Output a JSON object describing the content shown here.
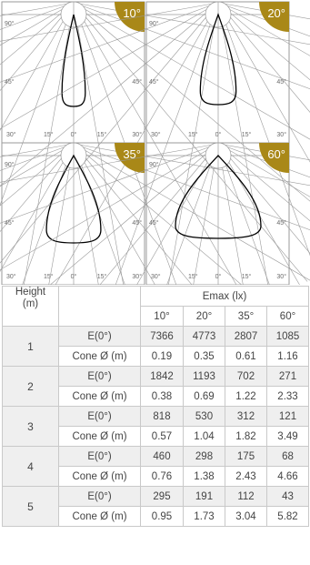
{
  "colors": {
    "badge": "#a98818",
    "curve": "#000000",
    "grid_lines": "#9a9a9a",
    "table_border": "#c9c9c9",
    "row_shade": "#efefef"
  },
  "polar_axis_labels": {
    "deg90": "90°",
    "deg45": "45°",
    "deg30": "30°",
    "deg15": "15°",
    "deg0": "0°"
  },
  "diagrams": [
    {
      "badge": "10°",
      "beam_angle_deg": 10
    },
    {
      "badge": "20°",
      "beam_angle_deg": 20
    },
    {
      "badge": "35°",
      "beam_angle_deg": 35
    },
    {
      "badge": "60°",
      "beam_angle_deg": 60
    }
  ],
  "table": {
    "height_header": "Height\n(m)",
    "emax_header": "Emax (lx)",
    "angle_headers": [
      "10°",
      "20°",
      "35°",
      "60°"
    ],
    "rows": [
      {
        "height": "1",
        "illuminance_label": "E(0°)",
        "illuminance": [
          "7366",
          "4773",
          "2807",
          "1085"
        ],
        "cone_label": "Cone Ø (m)",
        "cone": [
          "0.19",
          "0.35",
          "0.61",
          "1.16"
        ]
      },
      {
        "height": "2",
        "illuminance_label": "E(0°)",
        "illuminance": [
          "1842",
          "1193",
          "702",
          "271"
        ],
        "cone_label": "Cone Ø (m)",
        "cone": [
          "0.38",
          "0.69",
          "1.22",
          "2.33"
        ]
      },
      {
        "height": "3",
        "illuminance_label": "E(0°)",
        "illuminance": [
          "818",
          "530",
          "312",
          "121"
        ],
        "cone_label": "Cone Ø (m)",
        "cone": [
          "0.57",
          "1.04",
          "1.82",
          "3.49"
        ]
      },
      {
        "height": "4",
        "illuminance_label": "E(0°)",
        "illuminance": [
          "460",
          "298",
          "175",
          "68"
        ],
        "cone_label": "Cone Ø (m)",
        "cone": [
          "0.76",
          "1.38",
          "2.43",
          "4.66"
        ]
      },
      {
        "height": "5",
        "illuminance_label": "E(0°)",
        "illuminance": [
          "295",
          "191",
          "112",
          "43"
        ],
        "cone_label": "Cone Ø (m)",
        "cone": [
          "0.95",
          "1.73",
          "3.04",
          "5.82"
        ]
      }
    ]
  }
}
